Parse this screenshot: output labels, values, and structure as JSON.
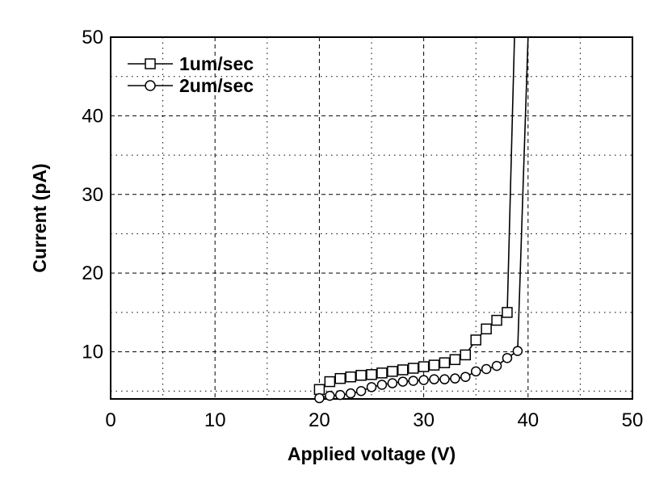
{
  "chart_data": {
    "type": "line",
    "title": "",
    "xlabel": "Applied voltage (V)",
    "ylabel": "Current (pA)",
    "xlim": [
      0,
      50
    ],
    "ylim": [
      4,
      50
    ],
    "xticks": [
      "0",
      "10",
      "20",
      "30",
      "40",
      "50"
    ],
    "yticks": [
      "10",
      "20",
      "30",
      "40",
      "50"
    ],
    "grid": true,
    "legend_position": "top-left",
    "series": [
      {
        "name": "1um/sec",
        "marker": "square",
        "points": [
          [
            20,
            5.2
          ],
          [
            21,
            6.2
          ],
          [
            22,
            6.6
          ],
          [
            23,
            6.8
          ],
          [
            24,
            7.0
          ],
          [
            25,
            7.1
          ],
          [
            26,
            7.3
          ],
          [
            27,
            7.5
          ],
          [
            28,
            7.7
          ],
          [
            29,
            7.9
          ],
          [
            30,
            8.1
          ],
          [
            31,
            8.3
          ],
          [
            32,
            8.6
          ],
          [
            33,
            9.0
          ],
          [
            34,
            9.6
          ],
          [
            35,
            11.5
          ],
          [
            36,
            12.9
          ],
          [
            37,
            14.0
          ],
          [
            38,
            15.0
          ]
        ],
        "tail": [
          [
            38.5,
            40
          ],
          [
            38.7,
            50
          ]
        ]
      },
      {
        "name": "2um/sec",
        "marker": "circle",
        "points": [
          [
            20,
            4.1
          ],
          [
            21,
            4.4
          ],
          [
            22,
            4.5
          ],
          [
            23,
            4.7
          ],
          [
            24,
            5.0
          ],
          [
            25,
            5.5
          ],
          [
            26,
            5.8
          ],
          [
            27,
            6.0
          ],
          [
            28,
            6.2
          ],
          [
            29,
            6.3
          ],
          [
            30,
            6.4
          ],
          [
            31,
            6.5
          ],
          [
            32,
            6.5
          ],
          [
            33,
            6.6
          ],
          [
            34,
            6.8
          ],
          [
            35,
            7.5
          ],
          [
            36,
            7.8
          ],
          [
            37,
            8.2
          ],
          [
            38,
            9.2
          ],
          [
            39,
            10.1
          ]
        ],
        "tail": [
          [
            39.5,
            30
          ],
          [
            40,
            50
          ]
        ]
      }
    ]
  }
}
